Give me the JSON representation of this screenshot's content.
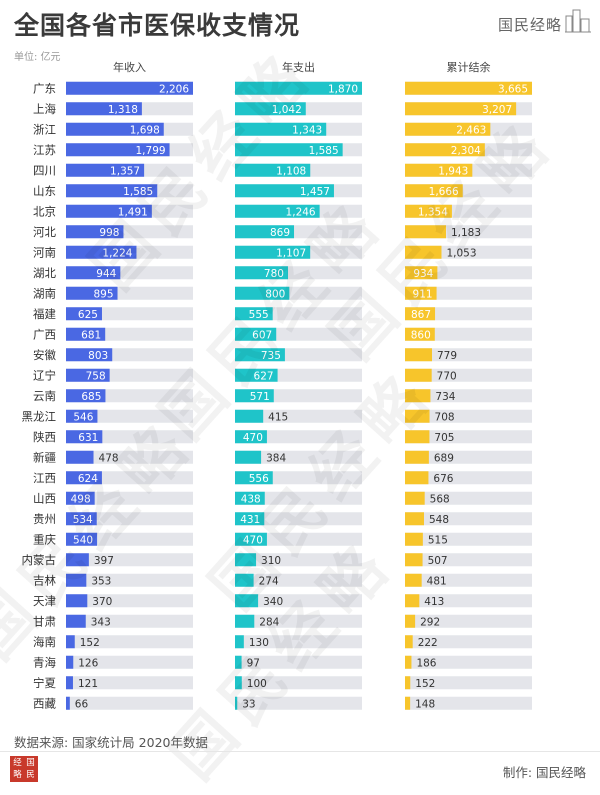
{
  "title": "全国各省市医保收支情况",
  "brand": "国民经略",
  "unit": "单位: 亿元",
  "source": "数据来源: 国家统计局 2020年数据",
  "credit": "制作: 国民经略",
  "logo_text": "经国略民",
  "watermark_text": "国民经略",
  "colors": {
    "income": "#4a68e3",
    "expense": "#1fc4c9",
    "balance": "#f7c52b",
    "track": "#e4e5ea",
    "text": "#333333"
  },
  "chart_data": {
    "type": "bar",
    "orientation": "horizontal",
    "categories": [
      "广东",
      "上海",
      "浙江",
      "江苏",
      "四川",
      "山东",
      "北京",
      "河北",
      "河南",
      "湖北",
      "湖南",
      "福建",
      "广西",
      "安徽",
      "辽宁",
      "云南",
      "黑龙江",
      "陕西",
      "新疆",
      "江西",
      "山西",
      "贵州",
      "重庆",
      "内蒙古",
      "吉林",
      "天津",
      "甘肃",
      "海南",
      "青海",
      "宁夏",
      "西藏"
    ],
    "series": [
      {
        "name": "年收入",
        "color": "#4a68e3",
        "xlim": [
          0,
          2206
        ],
        "values": [
          2206,
          1318,
          1698,
          1799,
          1357,
          1585,
          1491,
          998,
          1224,
          944,
          895,
          625,
          681,
          803,
          758,
          685,
          546,
          631,
          478,
          624,
          498,
          534,
          540,
          397,
          353,
          370,
          343,
          152,
          126,
          121,
          66
        ],
        "labels": [
          "2,206",
          "1,318",
          "1,698",
          "1,799",
          "1,357",
          "1,585",
          "1,491",
          "998",
          "1,224",
          "944",
          "895",
          "625",
          "681",
          "803",
          "758",
          "685",
          "546",
          "631",
          "478",
          "624",
          "498",
          "534",
          "540",
          "397",
          "353",
          "370",
          "343",
          "152",
          "126",
          "121",
          "66"
        ]
      },
      {
        "name": "年支出",
        "color": "#1fc4c9",
        "xlim": [
          0,
          1870
        ],
        "values": [
          1870,
          1042,
          1343,
          1585,
          1108,
          1457,
          1246,
          869,
          1107,
          780,
          800,
          555,
          607,
          735,
          627,
          571,
          415,
          470,
          384,
          556,
          438,
          431,
          470,
          310,
          274,
          340,
          284,
          130,
          97,
          100,
          33
        ],
        "labels": [
          "1,870",
          "1,042",
          "1,343",
          "1,585",
          "1,108",
          "1,457",
          "1,246",
          "869",
          "1,107",
          "780",
          "800",
          "555",
          "607",
          "735",
          "627",
          "571",
          "415",
          "470",
          "384",
          "556",
          "438",
          "431",
          "470",
          "310",
          "274",
          "340",
          "284",
          "130",
          "97",
          "100",
          "33"
        ]
      },
      {
        "name": "累计结余",
        "color": "#f7c52b",
        "xlim": [
          0,
          3665
        ],
        "values": [
          3665,
          3207,
          2463,
          2304,
          1943,
          1666,
          1354,
          1183,
          1053,
          934,
          911,
          867,
          860,
          779,
          770,
          734,
          708,
          705,
          689,
          676,
          568,
          548,
          515,
          507,
          481,
          413,
          292,
          222,
          186,
          152,
          148
        ],
        "labels": [
          "3,665",
          "3,207",
          "2,463",
          "2,304",
          "1,943",
          "1,666",
          "1,354",
          "1,183",
          "1,053",
          "934",
          "911",
          "867",
          "860",
          "779",
          "770",
          "734",
          "708",
          "705",
          "689",
          "676",
          "568",
          "548",
          "515",
          "507",
          "481",
          "413",
          "292",
          "222",
          "186",
          "152",
          "148"
        ]
      }
    ]
  }
}
